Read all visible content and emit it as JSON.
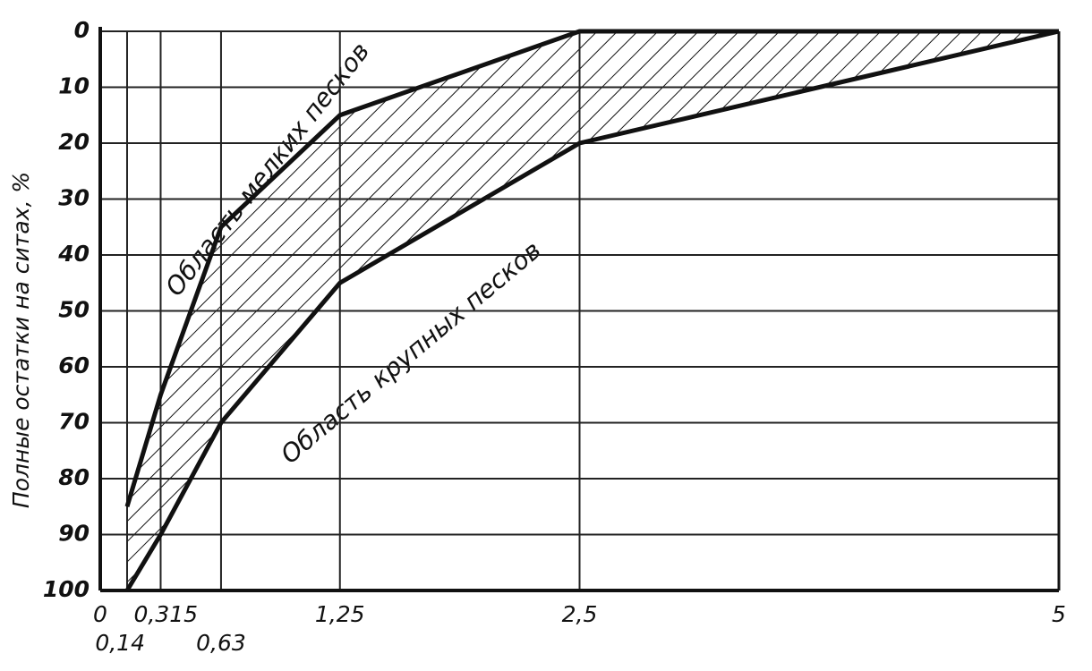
{
  "chart_data": {
    "type": "area",
    "y_label": "Полные остатки на ситах, %",
    "annotations": [
      "Область мелких песков",
      "Область крупных песков"
    ],
    "x": [
      0.14,
      0.315,
      0.63,
      1.25,
      2.5,
      5
    ],
    "series": [
      {
        "name": "Область мелких песков",
        "color": "#111111",
        "values": [
          85,
          65,
          35,
          15,
          0,
          0
        ]
      },
      {
        "name": "Область крупных песков",
        "color": "#111111",
        "values": [
          100,
          90,
          70,
          45,
          20,
          0
        ]
      }
    ],
    "xlim": [
      0,
      5
    ],
    "xticks": [
      0,
      {
        "value": 0.14,
        "label": "0,14"
      },
      {
        "value": 0.315,
        "label": "0,315"
      },
      {
        "value": 0.63,
        "label": "0,63"
      },
      {
        "value": 1.25,
        "label": "1,25"
      },
      {
        "value": 2.5,
        "label": "2,5"
      },
      5
    ],
    "ylim": [
      100,
      0
    ],
    "yticks": [
      0,
      10,
      20,
      30,
      40,
      50,
      60,
      70,
      80,
      90,
      100
    ],
    "grid": true,
    "hatched": true
  }
}
